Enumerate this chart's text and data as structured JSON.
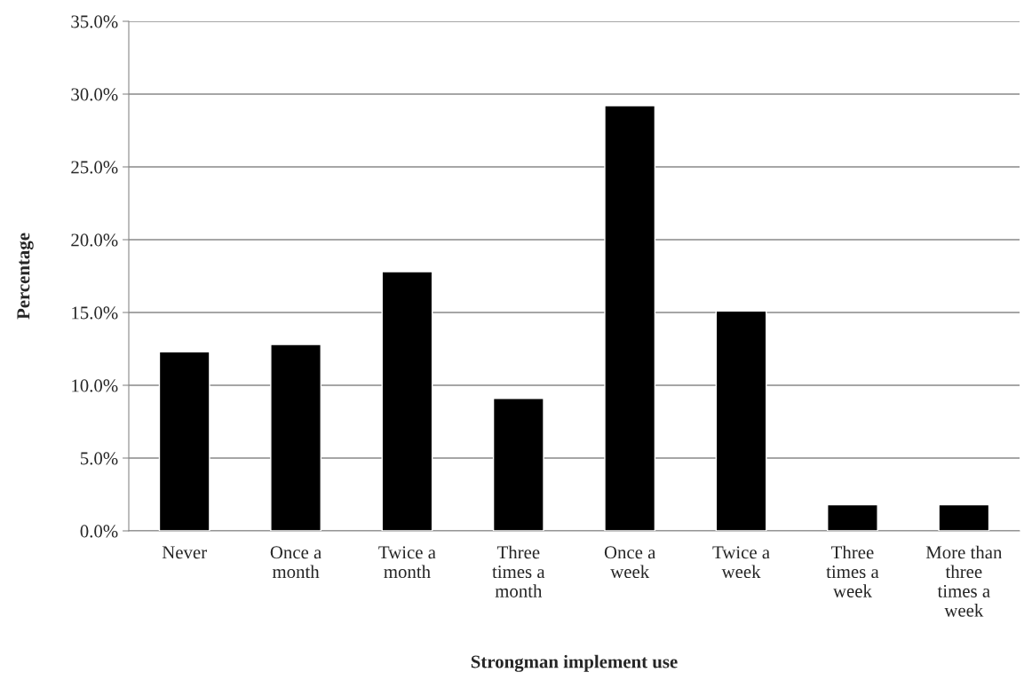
{
  "chart_data": {
    "type": "bar",
    "xlabel": "Strongman implement use",
    "ylabel": "Percentage",
    "categories": [
      "Never",
      "Once a month",
      "Twice a month",
      "Three times a month",
      "Once a week",
      "Twice a week",
      "Three times a week",
      "More than three times a week"
    ],
    "values": [
      12.3,
      12.8,
      17.8,
      9.1,
      29.2,
      15.1,
      1.8,
      1.8
    ],
    "color": "#000000",
    "ylim": [
      0,
      35
    ],
    "yticks": [
      {
        "value": 0,
        "label": "0.0%"
      },
      {
        "value": 5,
        "label": "5.0%"
      },
      {
        "value": 10,
        "label": "10.0%"
      },
      {
        "value": 15,
        "label": "15.0%"
      },
      {
        "value": 20,
        "label": "20.0%"
      },
      {
        "value": 25,
        "label": "25.0%"
      },
      {
        "value": 30,
        "label": "30.0%"
      },
      {
        "value": 35,
        "label": "35.0%"
      }
    ],
    "grid": "y"
  }
}
